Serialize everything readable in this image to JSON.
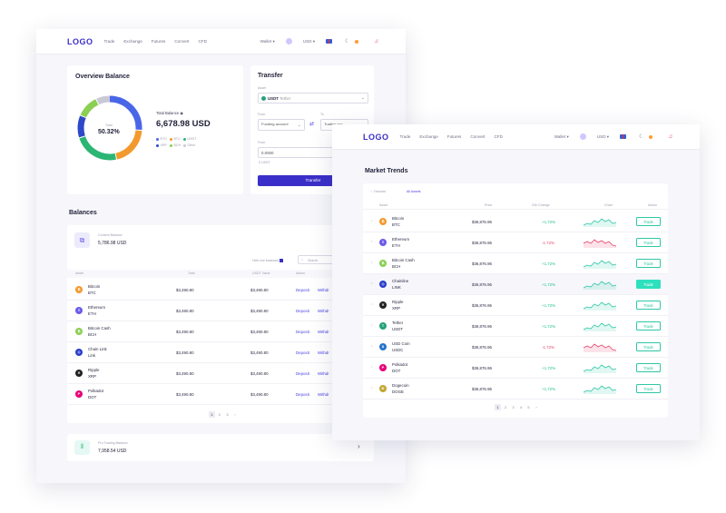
{
  "nav": {
    "logo": "LOGO",
    "items": [
      "Trade",
      "Exchange",
      "Futures",
      "Convert",
      "CFD"
    ],
    "wallet": "Wallet",
    "currency": "USD"
  },
  "overview": {
    "title": "Overview Balance",
    "donut_label": "Total",
    "donut_value": "50.32%",
    "total_label": "Total Balance",
    "total_value": "6,678.98 USD",
    "legend": [
      {
        "name": "ETH",
        "color": "#4a66e8"
      },
      {
        "name": "BTC",
        "color": "#f29a2e"
      },
      {
        "name": "USDT",
        "color": "#2bb673"
      },
      {
        "name": "XRP",
        "color": "#2e48c8"
      },
      {
        "name": "BCH",
        "color": "#8bcf53"
      },
      {
        "name": "Other",
        "color": "#c9c9d6"
      }
    ]
  },
  "transfer": {
    "title": "Transfer",
    "asset_label": "Asset",
    "asset_value": "USDT",
    "asset_sub": "Tether",
    "from_label": "From",
    "from_value": "Funding account",
    "to_label": "To",
    "to_value": "Trading acc",
    "amount_label": "From",
    "amount_value": "0.0000",
    "available": "0 USDT",
    "button": "Transfer"
  },
  "balances": {
    "title": "Balances",
    "content_label": "Content Balance",
    "content_value": "5,786.98 USD",
    "hide_zero": "Hide low balances",
    "search": "Search",
    "headers": {
      "asset": "Asset",
      "total": "Total",
      "value": "USDT Value",
      "action": "Action"
    },
    "rows": [
      {
        "name": "Bitcoin",
        "sym": "BTC",
        "total": "$3,490.80",
        "value": "$3,490.80",
        "color": "#f29a2e",
        "glyph": "₿"
      },
      {
        "name": "Ethereum",
        "sym": "ETH",
        "total": "$3,490.80",
        "value": "$3,490.80",
        "color": "#6a5ce8",
        "glyph": "Ξ"
      },
      {
        "name": "Bitcoin Cash",
        "sym": "BCH",
        "total": "$3,490.80",
        "value": "$3,490.80",
        "color": "#8bcf53",
        "glyph": "₿"
      },
      {
        "name": "Chain Link",
        "sym": "Link",
        "total": "$3,490.80",
        "value": "$3,490.80",
        "color": "#2a3dc8",
        "glyph": "◇"
      },
      {
        "name": "Ripple",
        "sym": "XRP",
        "total": "$3,490.80",
        "value": "$3,490.80",
        "color": "#222222",
        "glyph": "✕"
      },
      {
        "name": "Polkadot",
        "sym": "DOT",
        "total": "$3,490.80",
        "value": "$3,490.80",
        "color": "#e6007a",
        "glyph": "P"
      }
    ],
    "deposit": "Deposit",
    "withdraw": "Withdr",
    "pages": [
      "1",
      "2",
      "3",
      "›"
    ],
    "pro_label": "Pro Trading Balance",
    "pro_value": "7,958.54 USD"
  },
  "market": {
    "title": "Market Trends",
    "tabs": [
      "Favorite",
      "All Assets"
    ],
    "headers": {
      "asset": "Asset",
      "price": "Price",
      "change": "24h Change",
      "chart": "Chart",
      "action": "Action"
    },
    "rows": [
      {
        "name": "Bitcoin",
        "sym": "BTC",
        "price": "$36,876.96",
        "change": "+1.72%",
        "up": true,
        "color": "#f29a2e",
        "glyph": "₿"
      },
      {
        "name": "Ethereum",
        "sym": "ETH",
        "price": "$36,876.96",
        "change": "-1.72%",
        "up": false,
        "color": "#6a5ce8",
        "glyph": "Ξ"
      },
      {
        "name": "Bitcoin Cash",
        "sym": "BCH",
        "price": "$36,876.96",
        "change": "+1.72%",
        "up": true,
        "color": "#8bcf53",
        "glyph": "₿"
      },
      {
        "name": "Chainline",
        "sym": "LINK",
        "price": "$36,876.96",
        "change": "+1.72%",
        "up": true,
        "color": "#2a3dc8",
        "glyph": "◇"
      },
      {
        "name": "Ripple",
        "sym": "XRP",
        "price": "$36,876.96",
        "change": "+1.72%",
        "up": true,
        "color": "#222222",
        "glyph": "✕"
      },
      {
        "name": "Tether",
        "sym": "USDT",
        "price": "$36,876.96",
        "change": "+1.72%",
        "up": true,
        "color": "#26a17b",
        "glyph": "T"
      },
      {
        "name": "USD Coin",
        "sym": "USDC",
        "price": "$36,876.96",
        "change": "-1.72%",
        "up": false,
        "color": "#2775ca",
        "glyph": "$"
      },
      {
        "name": "Polkadot",
        "sym": "DOT",
        "price": "$36,876.96",
        "change": "+1.72%",
        "up": true,
        "color": "#e6007a",
        "glyph": "P"
      },
      {
        "name": "Dogecoin",
        "sym": "DOGE",
        "price": "$36,876.96",
        "change": "+1.72%",
        "up": true,
        "color": "#c2a633",
        "glyph": "Ð"
      }
    ],
    "trade": "Trade",
    "pages": [
      "1",
      "2",
      "3",
      "4",
      "5",
      "›"
    ]
  }
}
